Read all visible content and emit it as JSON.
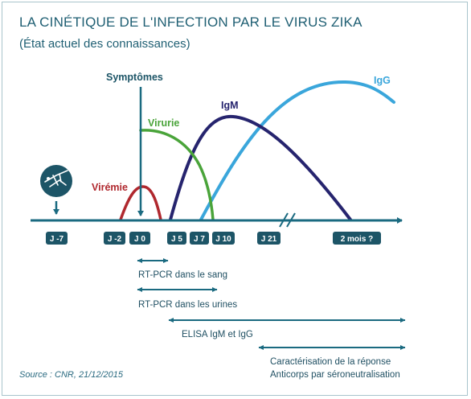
{
  "title": "LA CINÉTIQUE DE L'INFECTION PAR LE VIRUS ZIKA",
  "subtitle": "(État actuel des connaissances)",
  "labels": {
    "symptomes": "Symptômes",
    "viremie": "Virémie",
    "virurie": "Virurie",
    "igm": "IgM",
    "igg": "IgG"
  },
  "ticks": {
    "jm7": "J -7",
    "jm2": "J -2",
    "j0": "J 0",
    "j5": "J 5",
    "j7": "J 7",
    "j10": "J 10",
    "j21": "J 21",
    "m2": "2 mois ?"
  },
  "ranges": {
    "rtpcr_sang": "RT-PCR dans le sang",
    "rtpcr_urines": "RT-PCR dans les urines",
    "elisa": "ELISA IgM et IgG",
    "caract_line1": "Caractérisation de la réponse",
    "caract_line2": "Anticorps par séroneutralisation"
  },
  "source": "Source : CNR, 21/12/2015",
  "colors": {
    "axis": "#1a6a80",
    "viremie": "#b0282e",
    "virurie": "#4aa43a",
    "igm": "#26246e",
    "igg": "#3aa6db",
    "title": "#1f5f73",
    "tick_box": "#1d5567"
  },
  "icons": {
    "virus": "mosquito-icon"
  }
}
